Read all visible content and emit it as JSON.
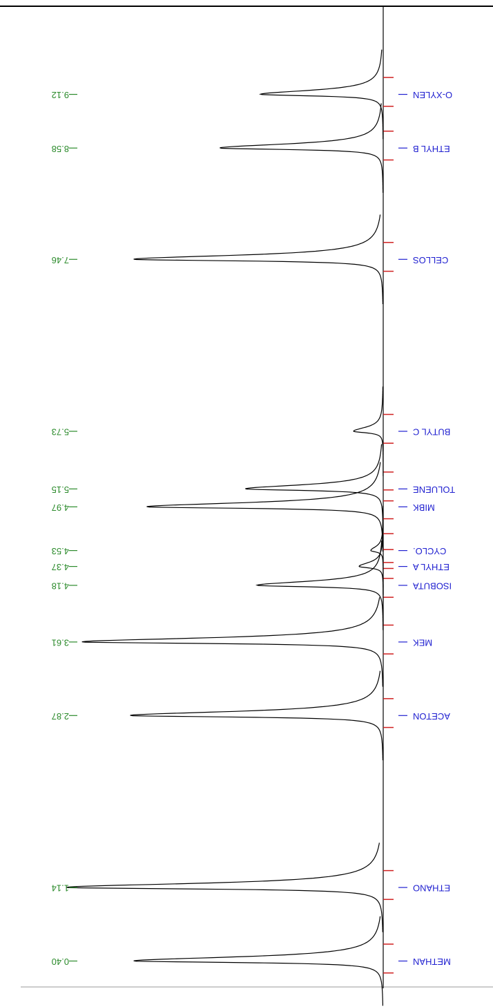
{
  "chart_data": {
    "type": "chromatogram",
    "categories": [
      "METHAN",
      "ETHANO",
      "ACETON",
      "MEK",
      "ISOBUTA",
      "ETHYL A",
      "CYCLO.",
      "MIBK",
      "TOLUENE",
      "BUTYL C",
      "CELLOS",
      "ETHYL B",
      "O-XYLEN"
    ],
    "x": [
      0.4,
      1.14,
      2.87,
      3.61,
      4.18,
      4.37,
      4.53,
      4.97,
      5.15,
      5.73,
      7.46,
      8.58,
      9.12
    ],
    "x_labels": [
      "0.40",
      "1.14",
      "2.87",
      "3.61",
      "4.18",
      "4.37",
      "4.53",
      "4.97",
      "5.15",
      "5.73",
      "7.46",
      "8.58",
      "9.12"
    ],
    "values": [
      362,
      460,
      367,
      437,
      183,
      35,
      18,
      343,
      200,
      43,
      362,
      237,
      178
    ],
    "xlim": [
      0,
      10
    ],
    "ylim": [
      0,
      500
    ],
    "color": "#000000",
    "x_label_color": "#2a8a2a",
    "name_color": "#1f1fd0",
    "marker_color": "#d02020"
  }
}
